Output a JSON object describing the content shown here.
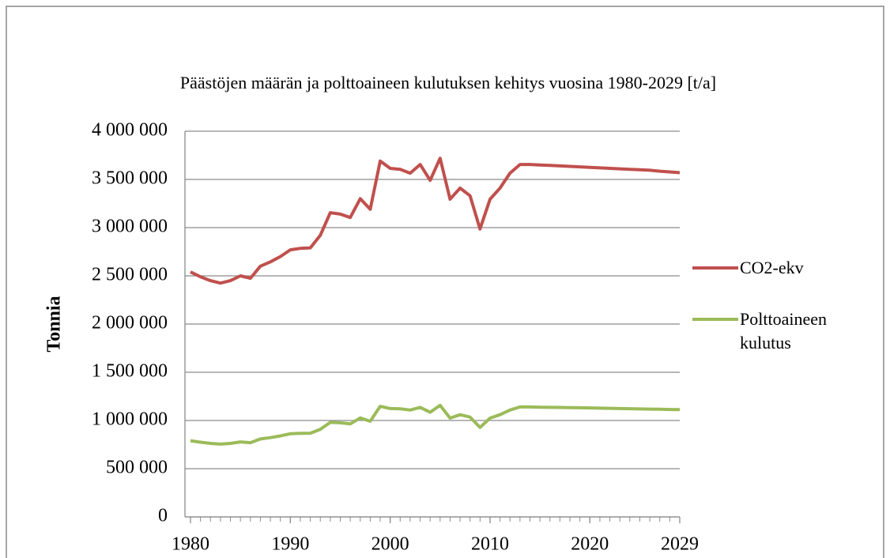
{
  "chart_data": {
    "type": "line",
    "title": "Päästöjen määrän ja polttoaineen kulutuksen kehitys vuosina 1980-2029 [t/a]",
    "ylabel": "Tonnia",
    "x": [
      1980,
      1981,
      1982,
      1983,
      1984,
      1985,
      1986,
      1987,
      1988,
      1989,
      1990,
      1991,
      1992,
      1993,
      1994,
      1995,
      1996,
      1997,
      1998,
      1999,
      2000,
      2001,
      2002,
      2003,
      2004,
      2005,
      2006,
      2007,
      2008,
      2009,
      2010,
      2011,
      2012,
      2013,
      2014,
      2015,
      2016,
      2017,
      2018,
      2019,
      2020,
      2021,
      2022,
      2023,
      2024,
      2025,
      2026,
      2027,
      2028,
      2029
    ],
    "series": [
      {
        "name": "CO2-ekv",
        "color": "#c0504d",
        "values": [
          2540000,
          2490000,
          2450000,
          2425000,
          2450000,
          2500000,
          2475000,
          2600000,
          2645000,
          2700000,
          2770000,
          2785000,
          2790000,
          2920000,
          3155000,
          3140000,
          3105000,
          3300000,
          3190000,
          3690000,
          3615000,
          3605000,
          3565000,
          3655000,
          3490000,
          3720000,
          3295000,
          3410000,
          3330000,
          2985000,
          3295000,
          3410000,
          3565000,
          3655000,
          3655000,
          3650000,
          3645000,
          3640000,
          3635000,
          3630000,
          3625000,
          3620000,
          3615000,
          3610000,
          3605000,
          3600000,
          3595000,
          3585000,
          3578000,
          3570000
        ]
      },
      {
        "name": "Polttoaineen kulutus",
        "color": "#9bbb59",
        "values": [
          790000,
          775000,
          762000,
          755000,
          762000,
          778000,
          770000,
          808000,
          822000,
          840000,
          862000,
          866000,
          868000,
          908000,
          980000,
          976000,
          965000,
          1026000,
          992000,
          1147000,
          1124000,
          1121000,
          1108000,
          1136000,
          1085000,
          1157000,
          1025000,
          1060000,
          1035000,
          928000,
          1025000,
          1060000,
          1108000,
          1140000,
          1140000,
          1138000,
          1136000,
          1135000,
          1133000,
          1132000,
          1130000,
          1128000,
          1126000,
          1124000,
          1122000,
          1120000,
          1118000,
          1116000,
          1114000,
          1112000
        ]
      }
    ],
    "xlim": [
      1980,
      2029
    ],
    "xticks": [
      1980,
      1990,
      2000,
      2010,
      2020,
      2029
    ],
    "ylim": [
      0,
      4000000
    ],
    "yticks": [
      0,
      {
        "value": 500000,
        "label": "500 000"
      },
      {
        "value": 1000000,
        "label": "1 000 000"
      },
      {
        "value": 1500000,
        "label": "1 500 000"
      },
      {
        "value": 2000000,
        "label": "2 000 000"
      },
      {
        "value": 2500000,
        "label": "2 500 000"
      },
      {
        "value": 3000000,
        "label": "3 000 000"
      },
      {
        "value": 3500000,
        "label": "3 500 000"
      },
      {
        "value": 4000000,
        "label": "4 000 000"
      }
    ],
    "grid": true,
    "legend": "right"
  }
}
